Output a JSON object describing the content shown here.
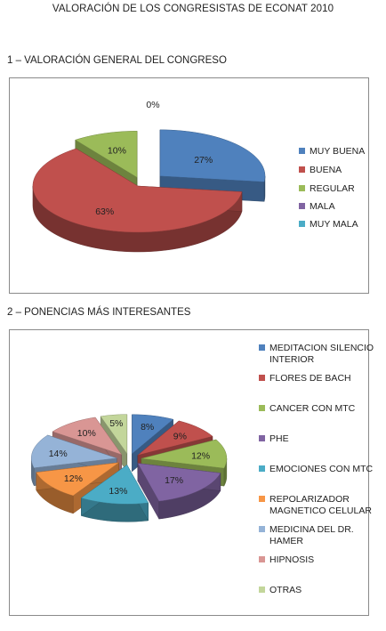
{
  "document_title": "VALORACIÓN DE LOS CONGRESISTAS DE ECONAT 2010",
  "section1_heading": "1 – VALORACIÓN GENERAL DEL CONGRESO",
  "section2_heading": "2 – PONENCIAS MÁS INTERESANTES",
  "chart_data": [
    {
      "type": "pie",
      "style": "3d-exploded",
      "title": "",
      "legend_position": "right",
      "categories": [
        "MUY BUENA",
        "BUENA",
        "REGULAR",
        "MALA",
        "MUY MALA"
      ],
      "values": [
        27,
        63,
        10,
        0,
        0
      ],
      "labels": [
        "27%",
        "63%",
        "10%",
        "",
        "0%"
      ],
      "colors": [
        "#4f81bd",
        "#c0504d",
        "#9bbb59",
        "#8064a2",
        "#4bacc6"
      ]
    },
    {
      "type": "pie",
      "style": "3d-exploded",
      "title": "",
      "legend_position": "right",
      "categories": [
        "MEDITACION SILENCIO INTERIOR",
        "FLORES DE BACH",
        "CANCER CON MTC",
        "PHE",
        "EMOCIONES CON MTC",
        "REPOLARIZADOR MAGNETICO CELULAR",
        "MEDICINA DEL DR. HAMER",
        "HIPNOSIS",
        "OTRAS"
      ],
      "values": [
        8,
        9,
        12,
        17,
        13,
        12,
        14,
        10,
        5
      ],
      "labels": [
        "8%",
        "9%",
        "12%",
        "17%",
        "13%",
        "12%",
        "14%",
        "10%",
        "5%"
      ],
      "colors": [
        "#4f81bd",
        "#c0504d",
        "#9bbb59",
        "#8064a2",
        "#4bacc6",
        "#f79646",
        "#95b3d7",
        "#d99694",
        "#c3d69b"
      ]
    }
  ]
}
